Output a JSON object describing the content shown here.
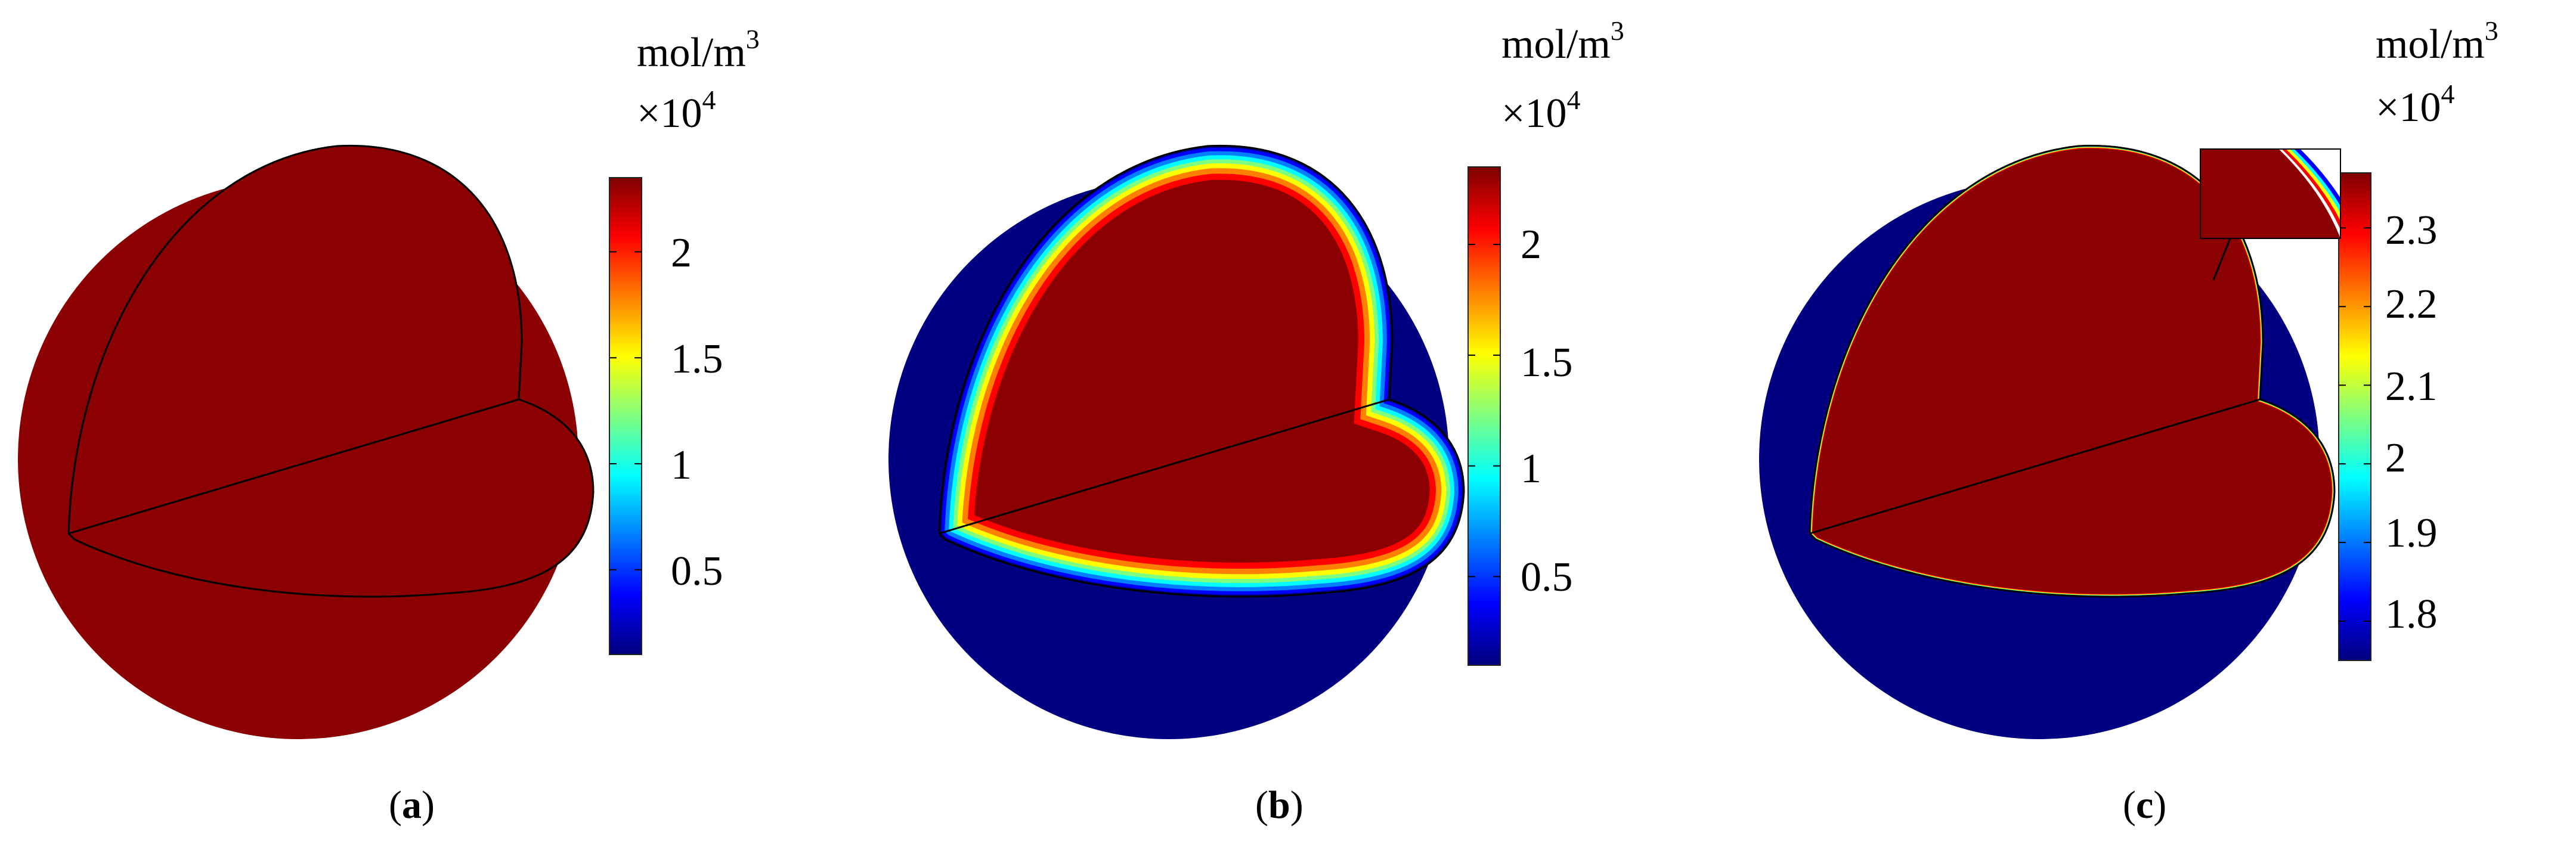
{
  "panels": [
    {
      "id": "a",
      "caption_open": "(",
      "caption_letter": "a",
      "caption_close": ")",
      "unit_base": "mol/m",
      "unit_exp": "3",
      "multiplier_base": "×10",
      "multiplier_exp": "4",
      "colorbar_ticks": [
        "2",
        "1.5",
        "1",
        "0.5"
      ],
      "tick_values": [
        2,
        1.5,
        1,
        0.5
      ],
      "colorbar_range": [
        0.1,
        2.35
      ],
      "shell_fraction": 0
    },
    {
      "id": "b",
      "caption_open": "(",
      "caption_letter": "b",
      "caption_close": ")",
      "unit_base": "mol/m",
      "unit_exp": "3",
      "multiplier_base": "×10",
      "multiplier_exp": "4",
      "colorbar_ticks": [
        "2",
        "1.5",
        "1",
        "0.5"
      ],
      "tick_values": [
        2,
        1.5,
        1,
        0.5
      ],
      "colorbar_range": [
        0.1,
        2.35
      ],
      "shell_fraction": 0.22
    },
    {
      "id": "c",
      "caption_open": "(",
      "caption_letter": "c",
      "caption_close": ")",
      "unit_base": "mol/m",
      "unit_exp": "3",
      "multiplier_base": "×10",
      "multiplier_exp": "4",
      "colorbar_ticks": [
        "2.3",
        "2.2",
        "2.1",
        "2",
        "1.9",
        "1.8"
      ],
      "tick_values": [
        2.3,
        2.2,
        2.1,
        2.0,
        1.9,
        1.8
      ],
      "colorbar_range": [
        1.75,
        2.37
      ],
      "shell_fraction": 0.035,
      "has_zoom_inset": true
    }
  ],
  "colormap": [
    "#00007f",
    "#0000ff",
    "#007fff",
    "#00ffff",
    "#7fff7f",
    "#ffff00",
    "#ff7f00",
    "#ff0000",
    "#7f0000"
  ],
  "colors": {
    "deep_red": "#8b0000",
    "deep_blue": "#000080",
    "outline": "#000000"
  }
}
